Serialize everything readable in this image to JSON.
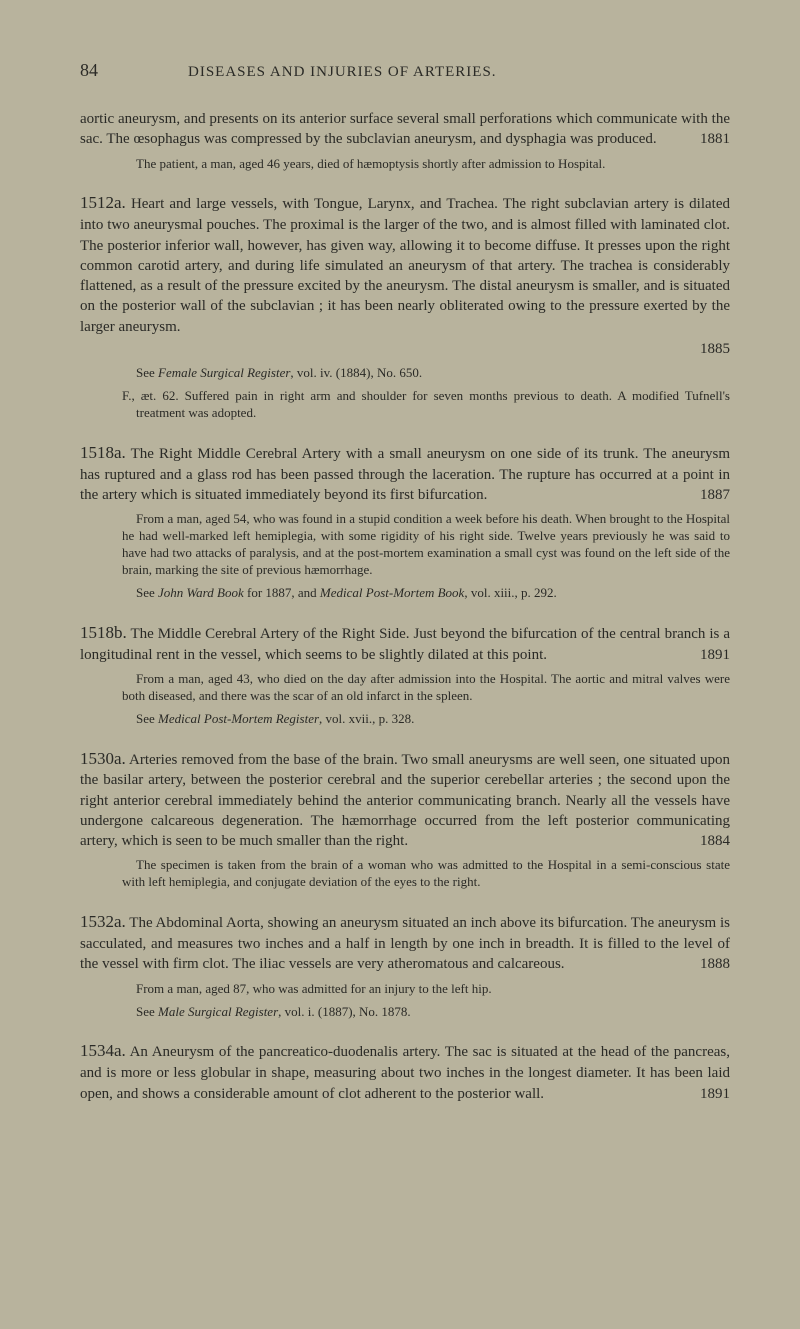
{
  "page_number": "84",
  "running_head": "DISEASES AND INJURIES OF ARTERIES.",
  "entries": [
    {
      "num": "",
      "body": "aortic aneurysm, and presents on its anterior surface several small perforations which communicate with the sac. The œsophagus was compressed by the subclavian aneurysm, and dysphagia was produced.",
      "year": "1881",
      "notes": [
        "The patient, a man, aged 46 years, died of hæmoptysis shortly after admission to Hospital."
      ]
    },
    {
      "num": "1512a.",
      "body": "Heart and large vessels, with Tongue, Larynx, and Trachea. The right subclavian artery is dilated into two aneurysmal pouches. The proximal is the larger of the two, and is almost filled with laminated clot. The posterior inferior wall, however, has given way, allowing it to become diffuse. It presses upon the right common carotid artery, and during life simulated an aneurysm of that artery. The trachea is considerably flattened, as a result of the pressure excited by the aneurysm. The distal aneurysm is smaller, and is situated on the posterior wall of the subclavian ; it has been nearly obliterated owing to the pressure exerted by the larger aneurysm.",
      "year": "1885",
      "notes": [
        "See <i>Female Surgical Register</i>, vol. iv. (1884), No. 650.",
        "F., æt. 62. Suffered pain in right arm and shoulder for seven months previous to death. A modified Tufnell's treatment was adopted."
      ]
    },
    {
      "num": "1518a.",
      "body": "The Right Middle Cerebral Artery with a small aneurysm on one side of its trunk. The aneurysm has ruptured and a glass rod has been passed through the laceration. The rupture has occurred at a point in the artery which is situated immediately beyond its first bifurcation.",
      "year": "1887",
      "notes": [
        "From a man, aged 54, who was found in a stupid condition a week before his death. When brought to the Hospital he had well-marked left hemiplegia, with some rigidity of his right side. Twelve years previously he was said to have had two attacks of paralysis, and at the post-mortem examination a small cyst was found on the left side of the brain, marking the site of previous hæmorrhage.",
        "See <i>John Ward Book</i> for 1887, and <i>Medical Post-Mortem Book</i>, vol. xiii., p. 292."
      ]
    },
    {
      "num": "1518b.",
      "body": "The Middle Cerebral Artery of the Right Side. Just beyond the bifurcation of the central branch is a longitudinal rent in the vessel, which seems to be slightly dilated at this point.",
      "year": "1891",
      "notes": [
        "From a man, aged 43, who died on the day after admission into the Hospital. The aortic and mitral valves were both diseased, and there was the scar of an old infarct in the spleen.",
        "See <i>Medical Post-Mortem Register</i>, vol. xvii., p. 328."
      ]
    },
    {
      "num": "1530a.",
      "body": "Arteries removed from the base of the brain. Two small aneurysms are well seen, one situated upon the basilar artery, between the posterior cerebral and the superior cerebellar arteries ; the second upon the right anterior cerebral immediately behind the anterior communicating branch. Nearly all the vessels have undergone calcareous degeneration. The hæmorrhage occurred from the left posterior communicating artery, which is seen to be much smaller than the right.",
      "year": "1884",
      "notes": [
        "The specimen is taken from the brain of a woman who was admitted to the Hospital in a semi-conscious state with left hemiplegia, and conjugate deviation of the eyes to the right."
      ]
    },
    {
      "num": "1532a.",
      "body": "The Abdominal Aorta, showing an aneurysm situated an inch above its bifurcation. The aneurysm is sacculated, and measures two inches and a half in length by one inch in breadth. It is filled to the level of the vessel with firm clot. The iliac vessels are very atheromatous and calcareous.",
      "year": "1888",
      "notes": [
        "From a man, aged 87, who was admitted for an injury to the left hip.",
        "See <i>Male Surgical Register</i>, vol. i. (1887), No. 1878."
      ]
    },
    {
      "num": "1534a.",
      "body": "An Aneurysm of the pancreatico-duodenalis artery. The sac is situated at the head of the pancreas, and is more or less globular in shape, measuring about two inches in the longest diameter. It has been laid open, and shows a considerable amount of clot adherent to the posterior wall.",
      "year": "1891",
      "notes": []
    }
  ]
}
